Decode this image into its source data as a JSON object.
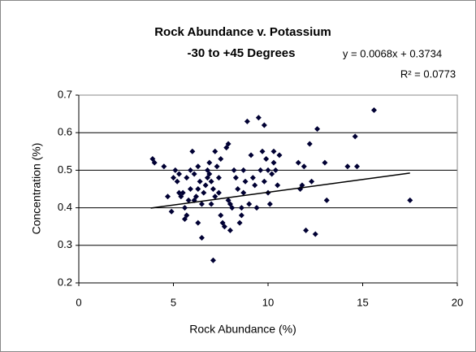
{
  "chart_data": {
    "type": "scatter",
    "title": "Rock Abundance v. Potassium",
    "subtitle": "-30 to +45 Degrees",
    "equation": "y = 0.0068x + 0.3734",
    "r_squared": "R² = 0.0773",
    "x_label": "Rock Abundance (%)",
    "y_label": "Concentration (%)",
    "color": "#000033",
    "grid": true,
    "xlim": [
      0,
      20
    ],
    "xticks": [
      0,
      5,
      10,
      15,
      20
    ],
    "ylim": [
      0.2,
      0.7
    ],
    "yticks": [
      0.2,
      0.3,
      0.4,
      0.5,
      0.6,
      0.7
    ],
    "trendline": {
      "slope": 0.0068,
      "intercept": 0.3734,
      "x": [
        3.8,
        17.5
      ]
    },
    "x": [
      3.9,
      4.0,
      4.5,
      4.7,
      4.9,
      5.0,
      5.1,
      5.2,
      5.3,
      5.4,
      5.5,
      5.6,
      5.6,
      5.7,
      5.7,
      5.8,
      5.9,
      5.9,
      6.0,
      6.1,
      6.1,
      6.2,
      6.3,
      6.3,
      6.4,
      6.5,
      6.5,
      6.6,
      6.7,
      6.8,
      6.8,
      6.9,
      6.9,
      7.0,
      7.0,
      7.1,
      7.1,
      7.2,
      7.2,
      7.3,
      7.4,
      7.5,
      7.5,
      7.6,
      7.7,
      7.8,
      7.9,
      7.9,
      8.0,
      8.0,
      8.1,
      8.2,
      8.3,
      8.4,
      8.5,
      8.6,
      8.6,
      8.7,
      8.8,
      8.9,
      9.0,
      9.1,
      9.2,
      9.3,
      9.4,
      9.5,
      9.6,
      9.7,
      9.8,
      9.8,
      9.9,
      10.0,
      10.0,
      10.1,
      10.2,
      10.3,
      10.3,
      10.4,
      10.5,
      10.6,
      11.6,
      11.7,
      11.8,
      11.9,
      12.0,
      12.2,
      12.3,
      12.5,
      12.6,
      13.0,
      13.1,
      14.2,
      14.6,
      14.7,
      15.6,
      17.5,
      6.3,
      5.3,
      7.4,
      8.7
    ],
    "values": [
      0.53,
      0.52,
      0.51,
      0.43,
      0.39,
      0.48,
      0.5,
      0.47,
      0.49,
      0.43,
      0.44,
      0.4,
      0.37,
      0.38,
      0.48,
      0.42,
      0.5,
      0.45,
      0.55,
      0.49,
      0.42,
      0.43,
      0.51,
      0.45,
      0.47,
      0.32,
      0.41,
      0.44,
      0.46,
      0.5,
      0.48,
      0.49,
      0.52,
      0.47,
      0.41,
      0.26,
      0.45,
      0.43,
      0.55,
      0.51,
      0.48,
      0.53,
      0.38,
      0.36,
      0.35,
      0.56,
      0.57,
      0.42,
      0.41,
      0.34,
      0.4,
      0.5,
      0.48,
      0.45,
      0.36,
      0.38,
      0.4,
      0.5,
      0.47,
      0.63,
      0.41,
      0.54,
      0.48,
      0.46,
      0.4,
      0.64,
      0.5,
      0.55,
      0.62,
      0.47,
      0.53,
      0.44,
      0.5,
      0.41,
      0.49,
      0.55,
      0.52,
      0.5,
      0.46,
      0.54,
      0.52,
      0.45,
      0.46,
      0.51,
      0.34,
      0.57,
      0.47,
      0.33,
      0.61,
      0.52,
      0.42,
      0.51,
      0.59,
      0.51,
      0.66,
      0.42,
      0.36,
      0.44,
      0.44,
      0.44
    ]
  }
}
